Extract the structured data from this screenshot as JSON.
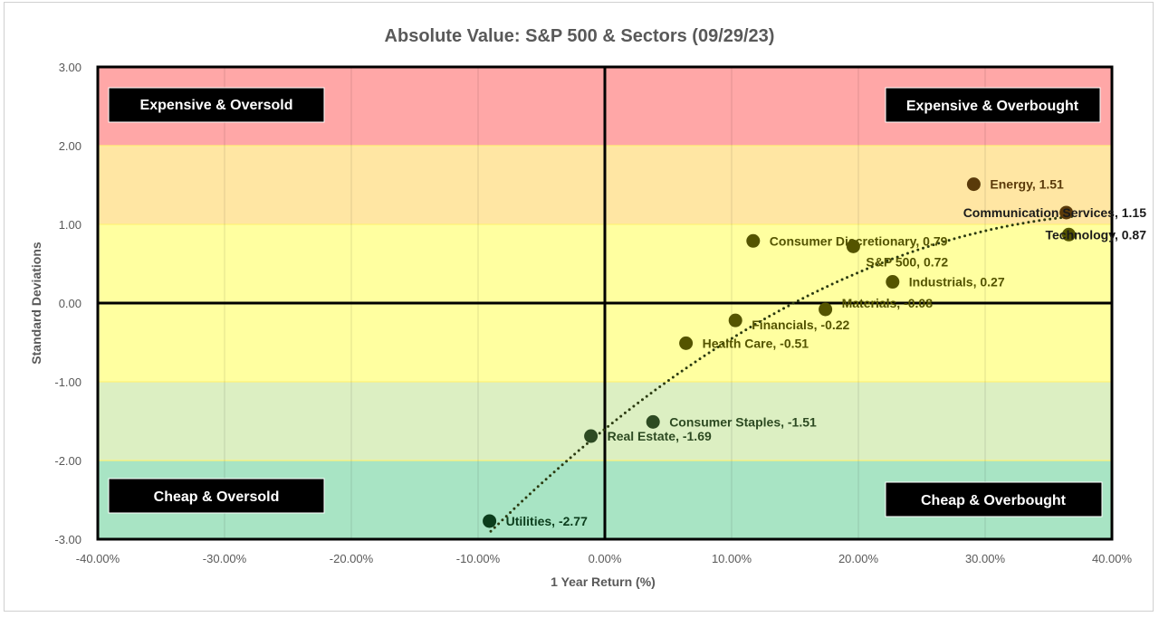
{
  "chart_data": {
    "type": "scatter",
    "title": "Absolute Value: S&P 500 & Sectors (09/29/23)",
    "xlabel": "1 Year Return (%)",
    "ylabel": "Standard Deviations",
    "xlim": [
      -40,
      40
    ],
    "ylim": [
      -3,
      3
    ],
    "x_ticks": [
      "-40.00%",
      "-30.00%",
      "-20.00%",
      "-10.00%",
      "0.00%",
      "10.00%",
      "20.00%",
      "30.00%",
      "40.00%"
    ],
    "y_ticks": [
      "3.00",
      "2.00",
      "1.00",
      "0.00",
      "-1.00",
      "-2.00",
      "-3.00"
    ],
    "grid": true,
    "trendline": "polynomial (dotted)",
    "bands": [
      {
        "from": 2,
        "to": 3,
        "color": "#ffa7a7"
      },
      {
        "from": 1,
        "to": 2,
        "color": "#ffe6a3"
      },
      {
        "from": -1,
        "to": 1,
        "color": "#ffffa0"
      },
      {
        "from": -2,
        "to": -1,
        "color": "#dcefc2"
      },
      {
        "from": -3,
        "to": -2,
        "color": "#a8e4c4"
      }
    ],
    "quadrant_labels": {
      "top_left": "Expensive & Oversold",
      "top_right": "Expensive & Overbought",
      "bottom_left": "Cheap & Oversold",
      "bottom_right": "Cheap & Overbought"
    },
    "points": [
      {
        "name": "Energy",
        "x": 29.1,
        "y": 1.51,
        "label": "Energy, 1.51",
        "color": "#5a3a0a"
      },
      {
        "name": "Communication Services",
        "x": 36.4,
        "y": 1.15,
        "label": "Communication Services, 1.15",
        "color": "#5a3a0a"
      },
      {
        "name": "Technology",
        "x": 36.6,
        "y": 0.87,
        "label": "Technology, 0.87",
        "color": "#545400"
      },
      {
        "name": "Consumer Discretionary",
        "x": 11.7,
        "y": 0.79,
        "label": "Consumer Discretionary, 0.79",
        "color": "#545400"
      },
      {
        "name": "S&P 500",
        "x": 19.6,
        "y": 0.72,
        "label": "S&P 500, 0.72",
        "color": "#545400"
      },
      {
        "name": "Industrials",
        "x": 22.7,
        "y": 0.27,
        "label": "Industrials, 0.27",
        "color": "#545400"
      },
      {
        "name": "Materials",
        "x": 17.4,
        "y": -0.08,
        "label": "Materials, -0.08",
        "color": "#545400"
      },
      {
        "name": "Financials",
        "x": 10.3,
        "y": -0.22,
        "label": "Financials, -0.22",
        "color": "#545400"
      },
      {
        "name": "Health Care",
        "x": 6.4,
        "y": -0.51,
        "label": "Health Care, -0.51",
        "color": "#545400"
      },
      {
        "name": "Consumer Staples",
        "x": 3.8,
        "y": -1.51,
        "label": "Consumer Staples, -1.51",
        "color": "#2d4a22"
      },
      {
        "name": "Real Estate",
        "x": -1.1,
        "y": -1.69,
        "label": "Real Estate, -1.69",
        "color": "#2d4a22"
      },
      {
        "name": "Utilities",
        "x": -9.1,
        "y": -2.77,
        "label": "Utilities, -2.77",
        "color": "#0b3d1c"
      }
    ]
  }
}
